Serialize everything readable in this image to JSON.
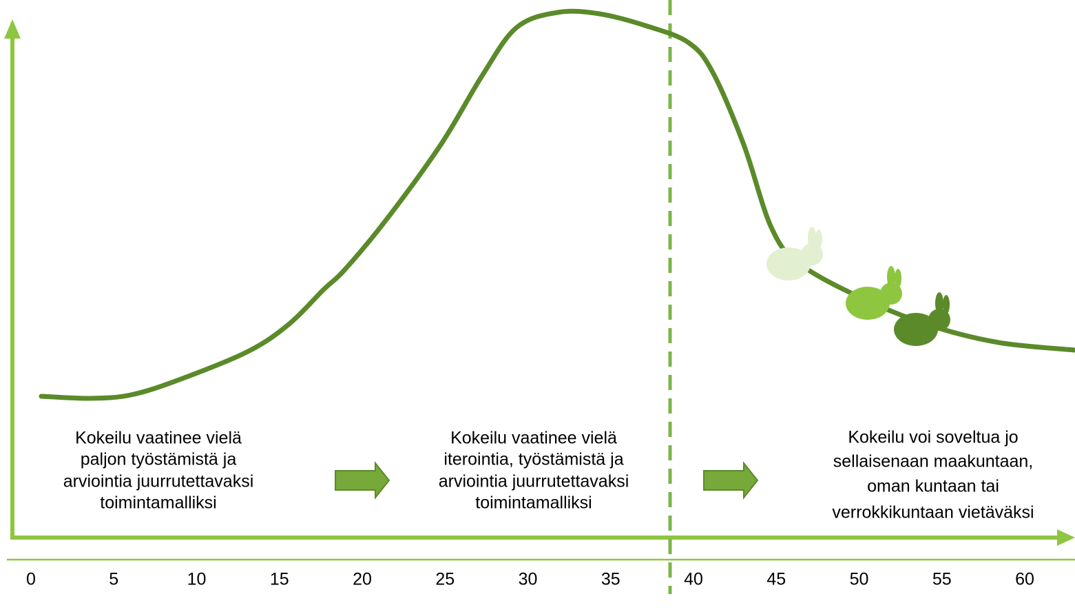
{
  "axis": {
    "ticks": [
      0,
      5,
      10,
      15,
      20,
      25,
      30,
      35,
      40,
      45,
      50,
      55,
      60
    ]
  },
  "phases": [
    {
      "lines": [
        "Kokeilu vaatinee vielä",
        "paljon työstämistä ja",
        "arviointia juurrutettavaksi",
        "toimintamalliksi"
      ]
    },
    {
      "lines": [
        "Kokeilu vaatinee vielä",
        "iterointia, työstämistä ja",
        "arviointia juurrutettavaksi",
        "toimintamalliksi"
      ]
    },
    {
      "lines": [
        "Kokeilu voi soveltua jo",
        "sellaisenaan maakuntaan,",
        "oman kuntaan tai",
        "verrokkikuntaan vietäväksi"
      ]
    }
  ]
}
